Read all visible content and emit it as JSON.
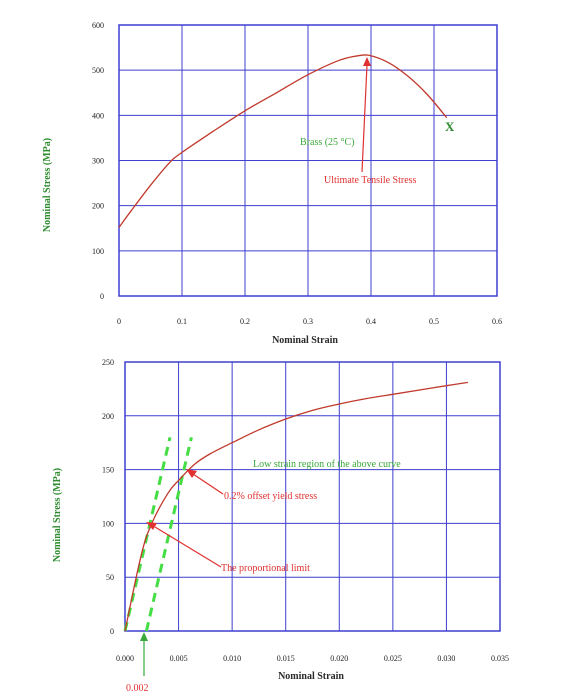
{
  "colors": {
    "grid": "#3f3fd0",
    "curve": "#c0392b",
    "annotation_red": "#e03030",
    "annotation_green": "#3aa83a",
    "offset_dash": "#44dd44",
    "axis_label_y": "#2e8b2e",
    "frame": "#3f3fd0"
  },
  "chart_data": [
    {
      "type": "line",
      "xlabel": "Nominal Strain",
      "ylabel": "Nominal Stress (MPa)",
      "xlim": [
        0,
        0.6
      ],
      "ylim": [
        0,
        600
      ],
      "x_ticks": [
        "0",
        "0.1",
        "0.2",
        "0.3",
        "0.4",
        "0.5",
        "0.6"
      ],
      "y_ticks": [
        "0",
        "100",
        "200",
        "300",
        "400",
        "500",
        "600"
      ],
      "grid": true,
      "series": [
        {
          "x": [
            0,
            0.02,
            0.05,
            0.08,
            0.1,
            0.15,
            0.2,
            0.25,
            0.3,
            0.35,
            0.38,
            0.4,
            0.43,
            0.46,
            0.49,
            0.52
          ],
          "y": [
            152,
            190,
            245,
            295,
            318,
            365,
            410,
            450,
            490,
            522,
            532,
            532,
            515,
            485,
            445,
            395
          ]
        }
      ],
      "annotations": [
        {
          "text": "Brass (25 °C)",
          "color": "green"
        },
        {
          "text": "Ultimate Tensile Stress",
          "color": "red",
          "arrow_to": [
            0.39,
            532
          ]
        },
        {
          "text": "X",
          "color": "green",
          "at": [
            0.52,
            395
          ]
        }
      ]
    },
    {
      "type": "line",
      "xlabel": "Nominal Strain",
      "ylabel": "Nominal Stress (MPa)",
      "xlim": [
        0,
        0.035
      ],
      "ylim": [
        0,
        250
      ],
      "x_ticks": [
        "0.000",
        "0.005",
        "0.010",
        "0.015",
        "0.020",
        "0.025",
        "0.030",
        "0.035"
      ],
      "y_ticks": [
        "0",
        "50",
        "100",
        "150",
        "200",
        "250"
      ],
      "grid": true,
      "series": [
        {
          "x": [
            0,
            0.0015,
            0.0025,
            0.004,
            0.005,
            0.0065,
            0.008,
            0.01,
            0.0125,
            0.015,
            0.0175,
            0.02,
            0.0225,
            0.025,
            0.0275,
            0.03,
            0.032
          ],
          "y": [
            0,
            70,
            100,
            128,
            140,
            155,
            165,
            175,
            187,
            197,
            205,
            211,
            216,
            220,
            224,
            228,
            231
          ]
        }
      ],
      "offset_lines": [
        {
          "x": [
            0,
            0.0042
          ],
          "y": [
            0,
            180
          ]
        },
        {
          "x": [
            0.002,
            0.0062
          ],
          "y": [
            0,
            180
          ]
        }
      ],
      "annotations": [
        {
          "text": "Low strain region of the above curve",
          "color": "green"
        },
        {
          "text": "0.2% offset yield stress",
          "color": "red",
          "arrow_to": [
            0.006,
            150
          ]
        },
        {
          "text": "The proportional limit",
          "color": "red",
          "arrow_to": [
            0.0025,
            100
          ]
        },
        {
          "text": "0.002",
          "color": "red",
          "arrow_to": [
            0.002,
            0
          ]
        }
      ]
    }
  ]
}
